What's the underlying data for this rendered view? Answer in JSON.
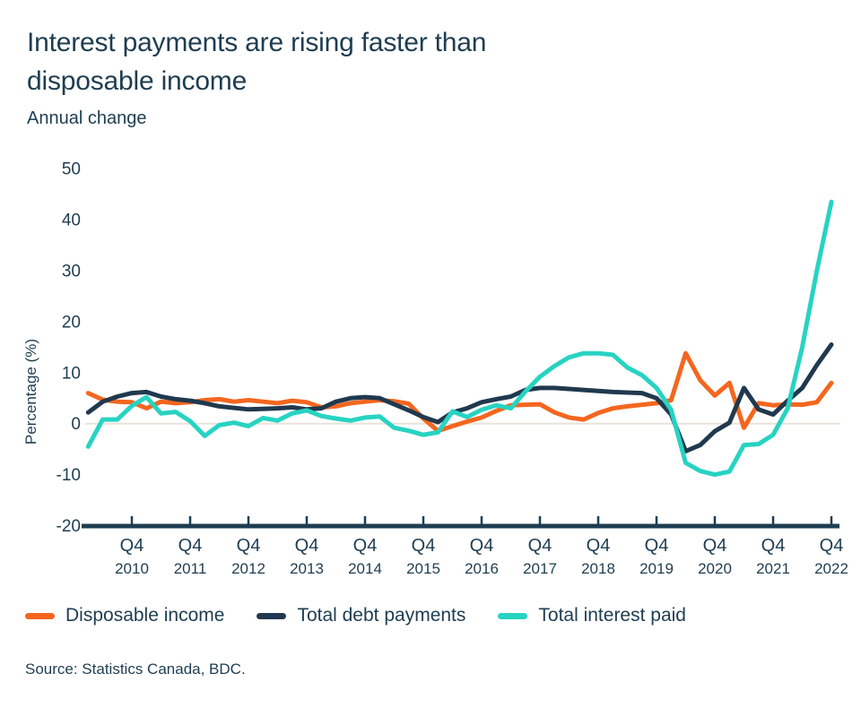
{
  "header": {
    "title_line1": "Interest payments are rising faster than",
    "title_line2": "disposable income",
    "subtitle": "Annual change"
  },
  "source": "Source: Statistics Canada, BDC.",
  "colors": {
    "text_navy": "#1E3D51",
    "axis_navy": "#1E3D51",
    "zero_line": "#E8E2D8",
    "background": "#FFFFFF"
  },
  "chart_data": {
    "type": "line",
    "title": "Interest payments are rising faster than disposable income",
    "subtitle": "Annual change",
    "ylabel": "Percentage (%)",
    "ylim": [
      -20,
      50
    ],
    "yticks": [
      50,
      40,
      30,
      20,
      10,
      0,
      -10,
      -20
    ],
    "grid": "zero-line-only",
    "legend_position": "bottom",
    "x_unit": "quarterly",
    "x_range": [
      "2010 Q1",
      "2022 Q4"
    ],
    "x_tick_quarter_label": "Q4",
    "x_tick_years": [
      "2010",
      "2011",
      "2012",
      "2013",
      "2014",
      "2015",
      "2016",
      "2017",
      "2018",
      "2019",
      "2020",
      "2021",
      "2022"
    ],
    "series": [
      {
        "name": "Disposable income",
        "color": "#F4661F",
        "values": [
          6.0,
          4.7,
          4.3,
          4.2,
          3.0,
          4.3,
          4.0,
          4.2,
          4.6,
          4.8,
          4.3,
          4.6,
          4.3,
          4.0,
          4.5,
          4.2,
          3.2,
          3.4,
          4.0,
          4.3,
          4.6,
          4.4,
          3.9,
          1.0,
          -1.4,
          -0.5,
          0.4,
          1.2,
          2.5,
          3.6,
          3.7,
          3.8,
          2.2,
          1.2,
          0.8,
          2.1,
          3.0,
          3.4,
          3.7,
          4.0,
          4.6,
          13.8,
          8.5,
          5.5,
          8.0,
          -0.8,
          4.0,
          3.6,
          3.8,
          3.7,
          4.2,
          8.0
        ]
      },
      {
        "name": "Total debt payments",
        "color": "#20394E",
        "values": [
          2.2,
          4.3,
          5.3,
          6.0,
          6.2,
          5.3,
          4.8,
          4.5,
          4.0,
          3.4,
          3.1,
          2.8,
          2.9,
          3.0,
          3.2,
          2.8,
          3.0,
          4.3,
          5.0,
          5.2,
          5.0,
          3.8,
          2.6,
          1.3,
          0.3,
          2.2,
          3.0,
          4.2,
          4.8,
          5.3,
          6.6,
          7.0,
          7.0,
          6.8,
          6.6,
          6.4,
          6.2,
          6.1,
          6.0,
          5.0,
          1.8,
          -5.4,
          -4.2,
          -1.5,
          0.2,
          7.0,
          2.8,
          1.8,
          4.5,
          7.0,
          11.5,
          15.5
        ]
      },
      {
        "name": "Total interest paid",
        "color": "#27D3C2",
        "values": [
          -4.5,
          0.8,
          0.8,
          3.5,
          5.2,
          2.0,
          2.3,
          0.5,
          -2.4,
          -0.3,
          0.2,
          -0.5,
          1.1,
          0.6,
          2.0,
          2.6,
          1.5,
          1.0,
          0.6,
          1.2,
          1.4,
          -0.8,
          -1.4,
          -2.2,
          -1.7,
          2.4,
          1.3,
          2.7,
          3.6,
          3.0,
          6.3,
          9.2,
          11.3,
          13.0,
          13.8,
          13.8,
          13.5,
          11.0,
          9.5,
          7.0,
          2.7,
          -7.7,
          -9.3,
          -10.0,
          -9.4,
          -4.2,
          -4.0,
          -2.2,
          3.0,
          15.0,
          30.0,
          43.5
        ]
      }
    ]
  }
}
